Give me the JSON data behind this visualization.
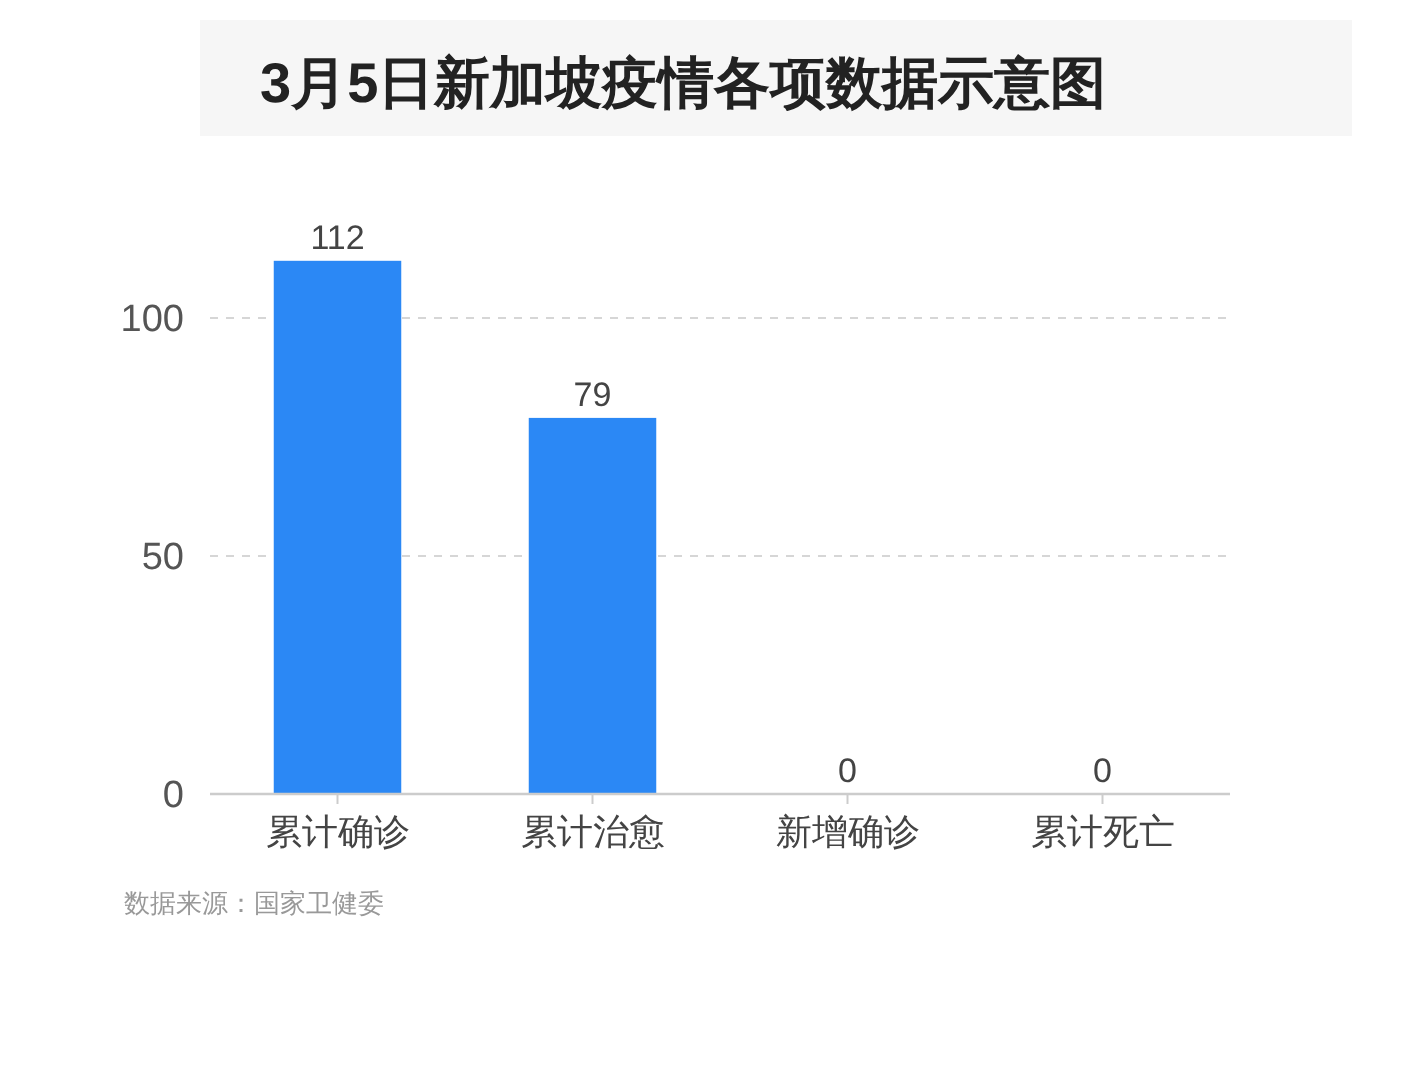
{
  "chart_data": {
    "type": "bar",
    "title": "3月5日新加坡疫情各项数据示意图",
    "categories": [
      "累计确诊",
      "累计治愈",
      "新增确诊",
      "累计死亡"
    ],
    "values": [
      112,
      79,
      0,
      0
    ],
    "color": "#2b88f5",
    "ylim": [
      0,
      112
    ],
    "yticks": [
      0,
      50,
      100
    ],
    "grid": "y",
    "data_labels": true,
    "annotations": [
      "数据来源：国家卫健委"
    ]
  }
}
